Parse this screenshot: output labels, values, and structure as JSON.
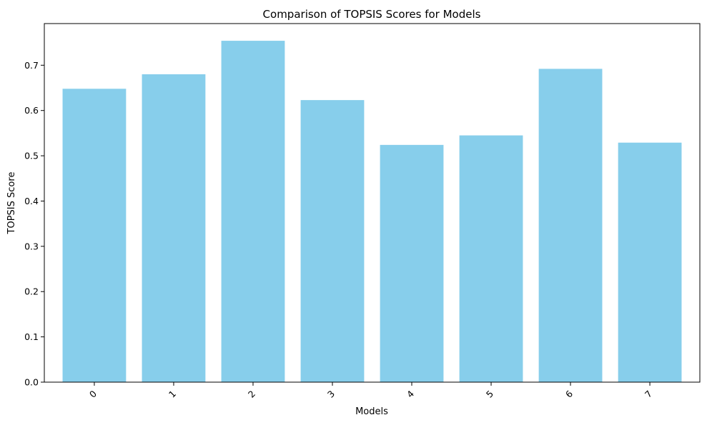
{
  "chart_data": {
    "type": "bar",
    "title": "Comparison of TOPSIS Scores for Models",
    "xlabel": "Models",
    "ylabel": "TOPSIS Score",
    "categories": [
      "0",
      "1",
      "2",
      "3",
      "4",
      "5",
      "6",
      "7"
    ],
    "values": [
      0.648,
      0.68,
      0.754,
      0.623,
      0.524,
      0.545,
      0.692,
      0.529
    ],
    "ylim": [
      0,
      0.792
    ],
    "yticks": [
      0.0,
      0.1,
      0.2,
      0.3,
      0.4,
      0.5,
      0.6,
      0.7
    ],
    "ytick_labels": [
      "0.0",
      "0.1",
      "0.2",
      "0.3",
      "0.4",
      "0.5",
      "0.6",
      "0.7"
    ],
    "bar_color": "#87CEEB",
    "grid": false,
    "xtick_rotation_deg": 45
  }
}
